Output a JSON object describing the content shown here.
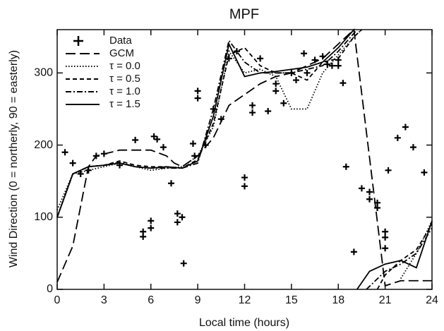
{
  "chart_data": {
    "type": "line",
    "title": "MPF",
    "x_label": "Local time (hours)",
    "y_label": "Wind Direction (0 = northerly, 90 = easterly)",
    "xlim": [
      0,
      24
    ],
    "xticks": [
      0,
      3,
      6,
      9,
      12,
      15,
      18,
      21,
      24
    ],
    "ylim": [
      0,
      360
    ],
    "yticks": [
      0,
      100,
      200,
      300
    ],
    "legend": "upper left",
    "series": [
      {
        "name": "Data",
        "color": "#000000",
        "marker": "plus",
        "line_style": "none",
        "x": [
          0.5,
          1.0,
          1.5,
          2.0,
          2.5,
          3.0,
          4.0,
          5.0,
          5.5,
          5.5,
          6.0,
          6.0,
          6.2,
          6.4,
          6.8,
          7.3,
          7.7,
          7.7,
          8.0,
          8.1,
          8.7,
          8.8,
          9.0,
          9.0,
          9.5,
          10.0,
          10.5,
          11.0,
          11.5,
          12.0,
          12.0,
          12.5,
          12.5,
          13.0,
          13.5,
          14.0,
          14.0,
          14.5,
          15.0,
          15.3,
          15.8,
          16.0,
          16.5,
          17.0,
          17.3,
          17.6,
          18.0,
          18.0,
          18.3,
          18.5,
          19.0,
          19.5,
          20.0,
          20.0,
          20.5,
          20.5,
          21.0,
          21.0,
          21.0,
          21.2,
          21.8,
          22.3,
          22.8,
          23.5
        ],
        "values": [
          190,
          175,
          160,
          165,
          185,
          188,
          172,
          207,
          73,
          80,
          85,
          95,
          212,
          208,
          197,
          147,
          105,
          93,
          100,
          36,
          202,
          185,
          275,
          265,
          200,
          250,
          236,
          320,
          330,
          155,
          143,
          255,
          245,
          320,
          247,
          285,
          275,
          258,
          300,
          290,
          327,
          300,
          318,
          323,
          312,
          310,
          318,
          310,
          286,
          170,
          52,
          140,
          135,
          125,
          120,
          113,
          80,
          72,
          57,
          165,
          210,
          225,
          197,
          162
        ]
      },
      {
        "name": "GCM",
        "color": "#000000",
        "line_style": "longdash",
        "x": [
          0,
          1,
          2,
          2.5,
          4,
          5,
          6,
          7,
          7.5,
          8,
          9,
          10,
          11,
          12,
          13,
          14,
          15,
          16,
          17,
          18,
          19,
          21,
          22,
          24
        ],
        "values": [
          10,
          60,
          170,
          185,
          193,
          193,
          193,
          185,
          175,
          170,
          185,
          210,
          255,
          270,
          285,
          295,
          300,
          310,
          320,
          340,
          360,
          5,
          12,
          12
        ]
      },
      {
        "name": "τ = 0.0",
        "color": "#000000",
        "line_style": "dotted",
        "x": [
          0,
          1,
          2,
          3,
          4,
          5,
          6,
          7,
          8,
          9,
          10,
          11,
          12,
          13,
          14,
          15,
          16,
          17,
          18,
          19,
          19.5,
          21.5,
          22,
          23,
          24
        ],
        "values": [
          110,
          160,
          165,
          170,
          175,
          170,
          165,
          168,
          170,
          185,
          225,
          330,
          300,
          305,
          295,
          250,
          250,
          300,
          325,
          350,
          360,
          null,
          15,
          50,
          95
        ]
      },
      {
        "name": "τ = 0.5",
        "color": "#000000",
        "line_style": "dashed",
        "x": [
          0,
          1,
          2,
          3,
          4,
          5,
          6,
          7,
          8,
          9,
          10,
          11,
          12,
          13,
          14,
          15,
          16,
          17,
          18,
          19,
          19.5,
          20,
          20.5,
          21,
          22,
          23,
          24
        ],
        "values": [
          100,
          160,
          170,
          172,
          178,
          172,
          170,
          170,
          168,
          180,
          230,
          325,
          335,
          310,
          300,
          300,
          290,
          315,
          320,
          350,
          360,
          null,
          0,
          20,
          40,
          55,
          90
        ]
      },
      {
        "name": "τ = 1.0",
        "color": "#000000",
        "line_style": "dashdot",
        "x": [
          0,
          1,
          2,
          3,
          4,
          5,
          6,
          7,
          8,
          9,
          10,
          11,
          12,
          13,
          14,
          15,
          16,
          17,
          18,
          19,
          19.2,
          19.5,
          19.8,
          21,
          22,
          23,
          24
        ],
        "values": [
          100,
          160,
          170,
          172,
          176,
          170,
          168,
          168,
          168,
          175,
          250,
          345,
          315,
          300,
          300,
          300,
          305,
          310,
          330,
          355,
          360,
          null,
          0,
          25,
          35,
          50,
          85
        ]
      },
      {
        "name": "τ = 1.5",
        "color": "#000000",
        "line_style": "solid",
        "x": [
          0,
          1,
          2,
          3,
          4,
          5,
          6,
          7,
          8,
          9,
          10,
          11,
          12,
          13,
          14,
          15,
          16,
          17,
          18,
          19,
          19.1,
          19.2,
          20,
          21,
          22,
          23,
          24
        ],
        "values": [
          100,
          160,
          170,
          172,
          175,
          170,
          168,
          170,
          168,
          178,
          240,
          340,
          295,
          300,
          302,
          305,
          308,
          315,
          335,
          360,
          null,
          0,
          25,
          35,
          40,
          30,
          95
        ]
      }
    ]
  }
}
